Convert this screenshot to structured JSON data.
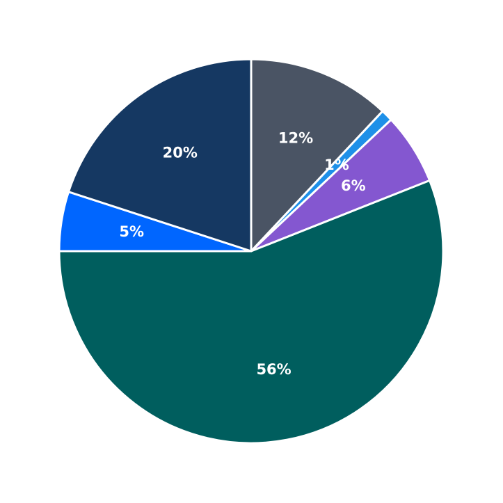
{
  "chart_data": {
    "type": "pie",
    "values": [
      12,
      1,
      6,
      56,
      5,
      20
    ],
    "value_labels": [
      "12%",
      "1%",
      "6%",
      "56%",
      "5%",
      "20%"
    ],
    "colors": [
      "#4a5464",
      "#1e90e8",
      "#8457d0",
      "#005e5e",
      "#0066ff",
      "#153862"
    ]
  }
}
